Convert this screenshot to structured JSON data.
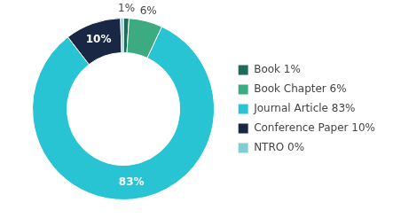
{
  "chart_data": {
    "type": "doughnut",
    "categories": [
      "Book 1%",
      "Book Chapter 6%",
      "Journal Article 83%",
      "Conference Paper 10%",
      "NTRO 0%"
    ],
    "values": [
      1,
      6,
      83,
      10,
      0.5
    ],
    "value_labels": [
      "1%",
      "6%",
      "83%",
      "10%",
      null
    ],
    "data_labels": true,
    "colors": [
      "#1d6b5a",
      "#3dab82",
      "#29c4d4",
      "#1a2744",
      "#7ecfd4"
    ],
    "legend": "right"
  }
}
